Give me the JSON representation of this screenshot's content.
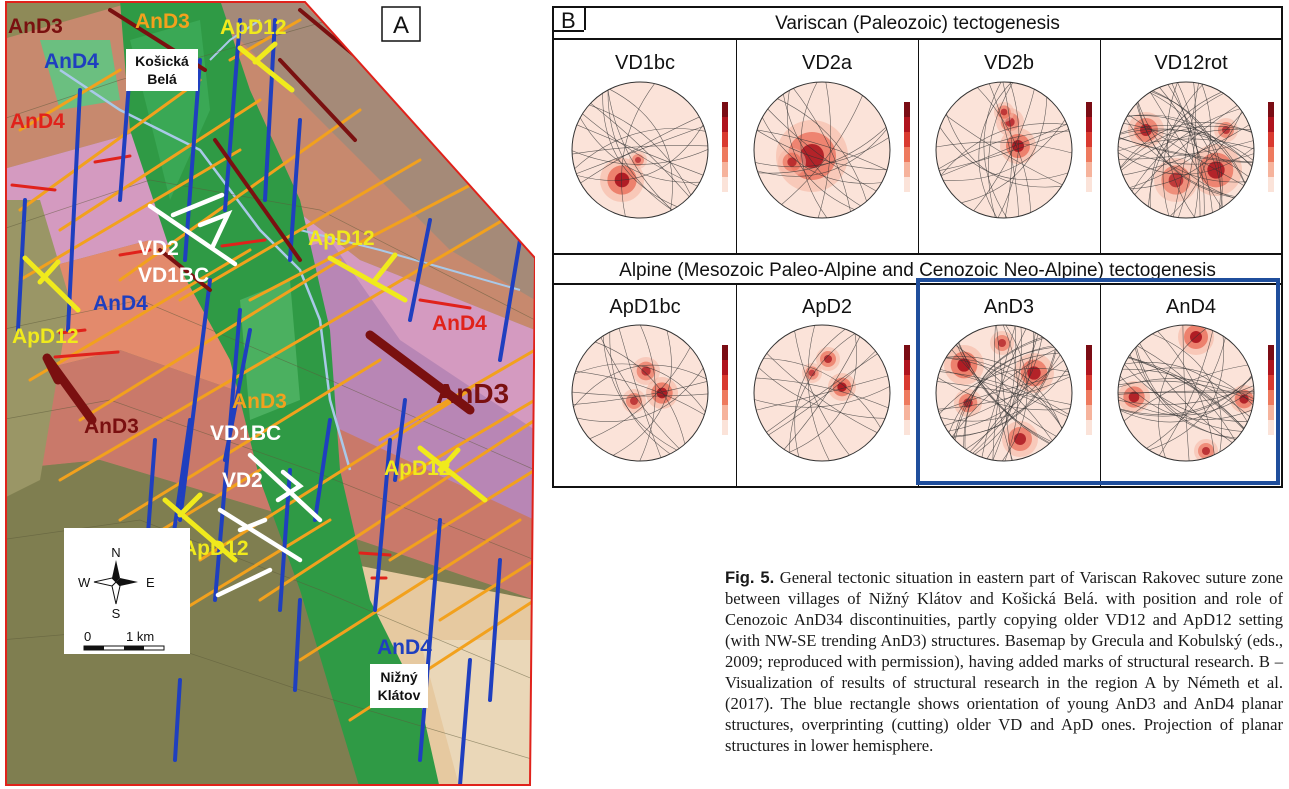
{
  "panel_a": {
    "letter": "A",
    "labels": {
      "andark_tl": "AnD3",
      "andark_mid": "AnD3",
      "andark_right": "AnD3",
      "and3_top": "AnD3",
      "and3_center": "AnD3",
      "and4_tl": "AnD4",
      "and4_left": "AnD4",
      "and4_mid": "AnD4",
      "and4_right": "AnD4",
      "and4_bottom": "AnD4",
      "apd12_top": "ApD12",
      "apd12_center": "ApD12",
      "apd12_left": "ApD12",
      "apd12_right": "ApD12",
      "apd12_bottom": "ApD12",
      "vd2_top": "VD2",
      "vd1bc_top": "VD1BC",
      "vd1bc_bottom": "VD1BC",
      "vd2_bottom": "VD2"
    },
    "village_north": [
      "Košická",
      "Belá"
    ],
    "village_south": [
      "Nižný",
      "Klátov"
    ],
    "compass": {
      "n": "N",
      "s": "S",
      "e": "E",
      "w": "W"
    },
    "scale": {
      "zero": "0",
      "km": "1 km"
    }
  },
  "panel_b": {
    "letter": "B",
    "variscan_title": "Variscan (Paleozoic) tectogenesis",
    "alpine_title": "Alpine (Mesozoic Paleo-Alpine and Cenozoic Neo-Alpine) tectogenesis",
    "plots": [
      {
        "name": "VD1bc"
      },
      {
        "name": "VD2a"
      },
      {
        "name": "VD2b"
      },
      {
        "name": "VD12rot"
      },
      {
        "name": "ApD1bc"
      },
      {
        "name": "ApD2"
      },
      {
        "name": "AnD3"
      },
      {
        "name": "AnD4"
      }
    ],
    "highlight_color": "#1f4e9c"
  },
  "caption": {
    "fig": "Fig. 5.",
    "text": "General tectonic situation in eastern part of Variscan Rakovec suture zone between villages of Nižný Klátov and Košická Belá. with position and role of Cenozoic AnD34 discontinuities, partly copying older VD12 and ApD12 setting (with NW-SE trending AnD3) structures. Basemap by Grecula and Kobulský (eds., 2009; reproduced with permission), having added marks of structural research. B – Visualization of results of structural research in the region A by Németh et al. (2017). The blue rectangle shows orientation of young AnD3 and AnD4 planar structures, overprinting (cutting) older VD and ApD ones. Projection of planar structures in lower hemisphere."
  },
  "colors": {
    "and3_dark": "#7a1010",
    "and4_blue": "#1f3fbf",
    "apd12_yellow": "#f0ea1c",
    "orange_line": "#f2a11d",
    "red_line": "#e0221b",
    "white": "#ffffff",
    "green": "#2f9a45",
    "pink": "#d49ac0",
    "salmon": "#e38a6c",
    "olive": "#8e8a58",
    "tan": "#e6c9a0"
  }
}
